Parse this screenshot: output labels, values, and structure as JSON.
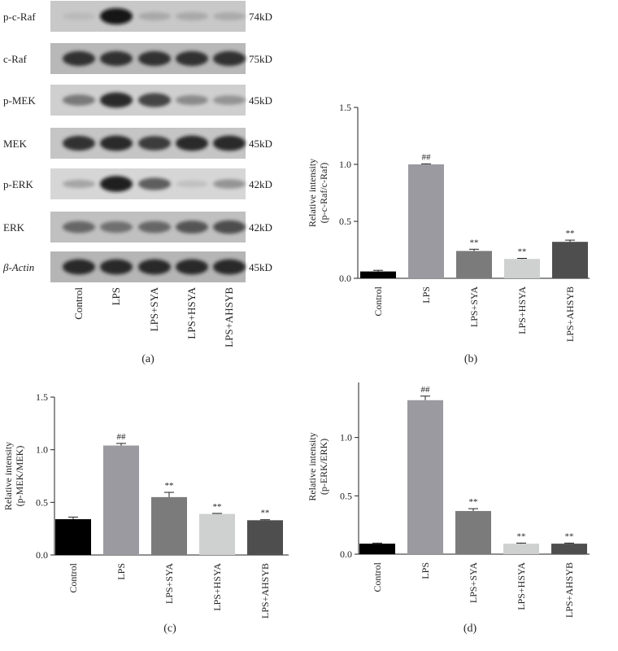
{
  "blot": {
    "proteins": [
      {
        "name": "p-c-Raf",
        "size": "74kD",
        "intensity": [
          0.08,
          1.0,
          0.18,
          0.18,
          0.17
        ],
        "bg": "#c8c8c8"
      },
      {
        "name": "c-Raf",
        "size": "75kD",
        "intensity": [
          0.85,
          0.85,
          0.85,
          0.85,
          0.85
        ],
        "bg": "#b8b8b8"
      },
      {
        "name": "p-MEK",
        "size": "45kD",
        "intensity": [
          0.45,
          0.9,
          0.75,
          0.35,
          0.3
        ],
        "bg": "#cfcfcf"
      },
      {
        "name": "MEK",
        "size": "45kD",
        "intensity": [
          0.85,
          0.9,
          0.8,
          0.9,
          0.9
        ],
        "bg": "#c5c5c5"
      },
      {
        "name": "p-ERK",
        "size": "42kD",
        "intensity": [
          0.2,
          0.95,
          0.6,
          0.05,
          0.3
        ],
        "bg": "#d6d6d6"
      },
      {
        "name": "ERK",
        "size": "42kD",
        "intensity": [
          0.55,
          0.5,
          0.55,
          0.65,
          0.7
        ],
        "bg": "#c0c0c0"
      },
      {
        "name": "β-Actin",
        "size": "45kD",
        "intensity": [
          0.9,
          0.9,
          0.9,
          0.9,
          0.9
        ],
        "bg": "#b5b5b5"
      }
    ],
    "lanes": [
      "Control",
      "LPS",
      "LPS+SYA",
      "LPS+HSYA",
      "LPS+AHSYB"
    ],
    "caption": "(a)"
  },
  "chart_data": [
    {
      "type": "bar",
      "caption": "(b)",
      "ylabel_line1": "Relative intensity",
      "ylabel_line2": "(p-c-Raf/c-Raf)",
      "ylim": [
        0,
        1.5
      ],
      "yticks": [
        "0.0",
        "0.5",
        "1.0",
        "1.5"
      ],
      "categories": [
        "Control",
        "LPS",
        "LPS+SYA",
        "LPS+HSYA",
        "LPS+AHSYB"
      ],
      "values": [
        0.06,
        1.0,
        0.24,
        0.17,
        0.32
      ],
      "errors": [
        0.01,
        0.005,
        0.015,
        0.005,
        0.015
      ],
      "annotations": [
        "",
        "##",
        "**",
        "**",
        "**"
      ],
      "colors": [
        "#000000",
        "#9a9aa0",
        "#7b7b7b",
        "#cfd0d0",
        "#4e4e4e"
      ]
    },
    {
      "type": "bar",
      "caption": "(c)",
      "ylabel_line1": "Relative intensity",
      "ylabel_line2": "(p-MEK/MEK)",
      "ylim": [
        0,
        1.5
      ],
      "yticks": [
        "0.0",
        "0.5",
        "1.0",
        "1.5"
      ],
      "categories": [
        "Control",
        "LPS",
        "LPS+SYA",
        "LPS+HSYA",
        "LPS+AHSYB"
      ],
      "values": [
        0.34,
        1.04,
        0.55,
        0.39,
        0.33
      ],
      "errors": [
        0.02,
        0.02,
        0.045,
        0.005,
        0.005
      ],
      "annotations": [
        "",
        "##",
        "**",
        "**",
        "**"
      ],
      "colors": [
        "#000000",
        "#9a9aa0",
        "#7b7b7b",
        "#cfd0d0",
        "#4e4e4e"
      ]
    },
    {
      "type": "bar",
      "caption": "(d)",
      "ylabel_line1": "Relative intensity",
      "ylabel_line2": "(p-ERK/ERK)",
      "ylim": [
        0,
        1.5
      ],
      "yticks": [
        "0.0",
        "0.5",
        "1.0",
        "1.5"
      ],
      "categories": [
        "Control",
        "LPS",
        "LPS+SYA",
        "LPS+HSYA",
        "LPS+AHSYB"
      ],
      "values": [
        0.09,
        1.32,
        0.37,
        0.09,
        0.09
      ],
      "errors": [
        0.005,
        0.035,
        0.02,
        0.005,
        0.005
      ],
      "annotations": [
        "",
        "##",
        "**",
        "**",
        "**"
      ],
      "colors": [
        "#000000",
        "#9a9aa0",
        "#7b7b7b",
        "#cfd0d0",
        "#4e4e4e"
      ]
    }
  ]
}
